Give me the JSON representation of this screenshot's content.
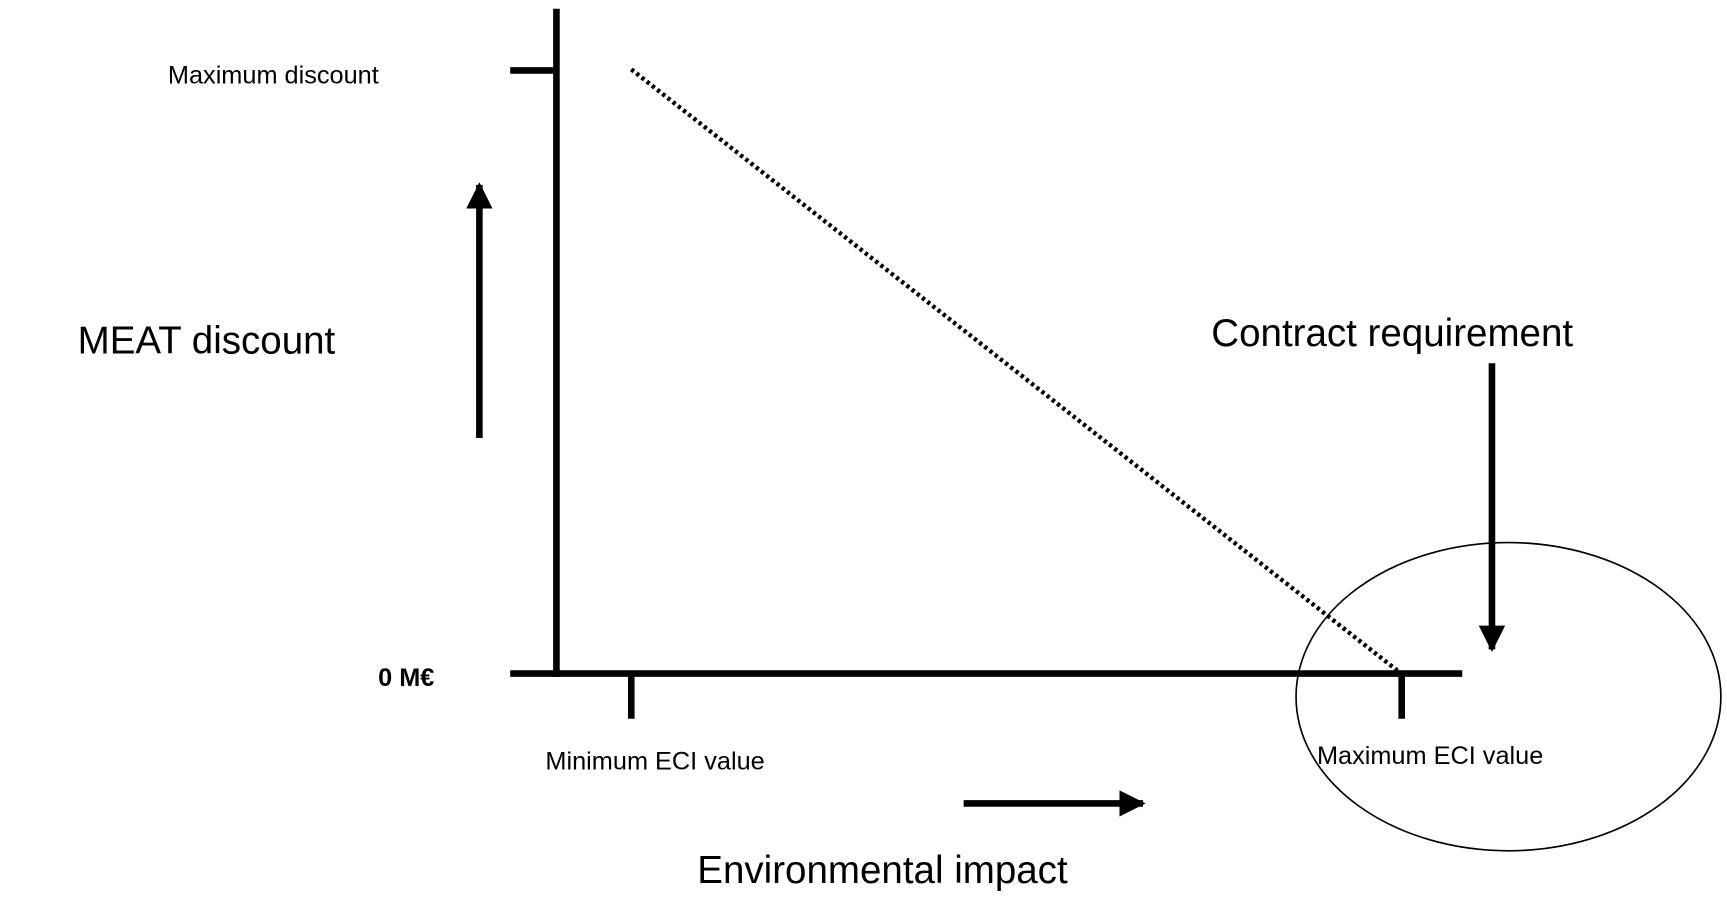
{
  "labels": {
    "max_discount": "Maximum discount",
    "y_axis": "MEAT discount",
    "zero": "0 M€",
    "min_eci": "Minimum ECI value",
    "max_eci": "Maximum ECI value",
    "x_axis": "Environmental impact",
    "contract": "Contract requirement"
  }
}
